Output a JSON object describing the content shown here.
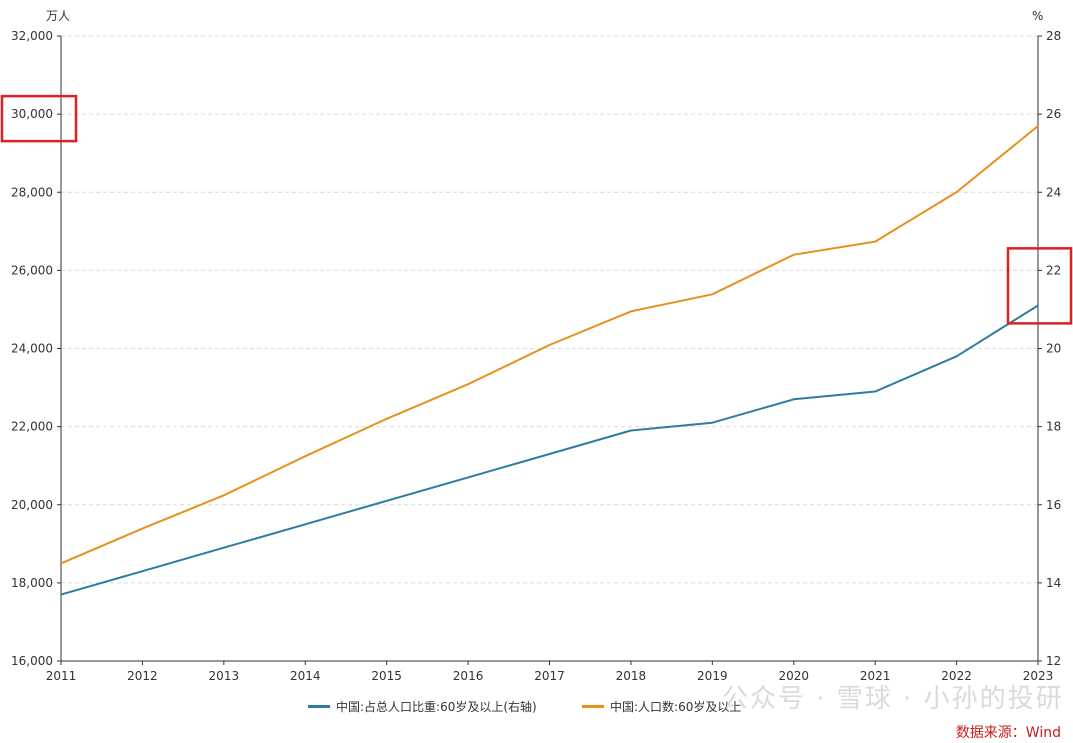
{
  "chart_data": {
    "type": "line",
    "x": [
      "2011",
      "2012",
      "2013",
      "2014",
      "2015",
      "2016",
      "2017",
      "2018",
      "2019",
      "2020",
      "2021",
      "2022",
      "2023"
    ],
    "y_left": {
      "unit": "万人",
      "ticks": [
        "16,000",
        "18,000",
        "20,000",
        "22,000",
        "24,000",
        "26,000",
        "28,000",
        "30,000",
        "32,000"
      ],
      "range": [
        16000,
        32000
      ]
    },
    "y_right": {
      "unit": "%",
      "ticks": [
        "12",
        "14",
        "16",
        "18",
        "20",
        "22",
        "24",
        "26",
        "28"
      ],
      "range": [
        12,
        28
      ]
    },
    "grid": "horizontal dashed",
    "legend_position": "bottom",
    "series": [
      {
        "name": "中国:占总人口比重:60岁及以上(右轴)",
        "axis": "right",
        "color": "#2e7ca0",
        "values": [
          13.7,
          14.3,
          14.9,
          15.5,
          16.1,
          16.7,
          17.3,
          17.9,
          18.1,
          18.7,
          18.9,
          19.8,
          21.1
        ]
      },
      {
        "name": "中国:人口数:60岁及以上",
        "axis": "left",
        "color": "#e8901e",
        "values": [
          18499,
          19390,
          20243,
          21242,
          22200,
          23086,
          24090,
          24949,
          25388,
          26402,
          26736,
          28004,
          29697
        ]
      }
    ],
    "highlight_boxes": [
      {
        "axis": "left",
        "label": "30,000",
        "color": "#e02020"
      },
      {
        "axis": "right",
        "label": "22",
        "color": "#e02020"
      }
    ]
  },
  "source_label": "数据来源：Wind",
  "watermark_text": "公众号 · 雪球 · 小孙的投研"
}
